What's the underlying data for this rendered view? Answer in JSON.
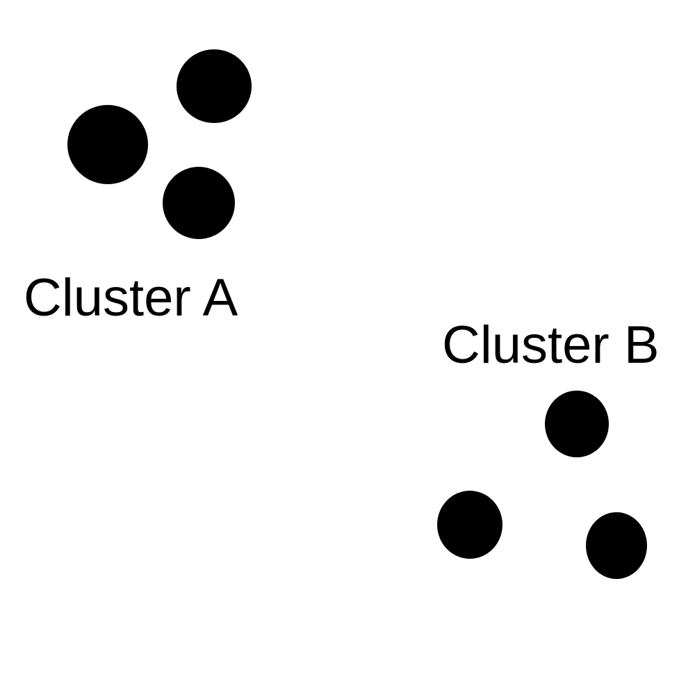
{
  "clusters": [
    {
      "label": "Cluster A",
      "dot_count": 3
    },
    {
      "label": "Cluster B",
      "dot_count": 3
    }
  ],
  "colors": {
    "background": "#ffffff",
    "dot": "#000000",
    "text": "#000000"
  }
}
